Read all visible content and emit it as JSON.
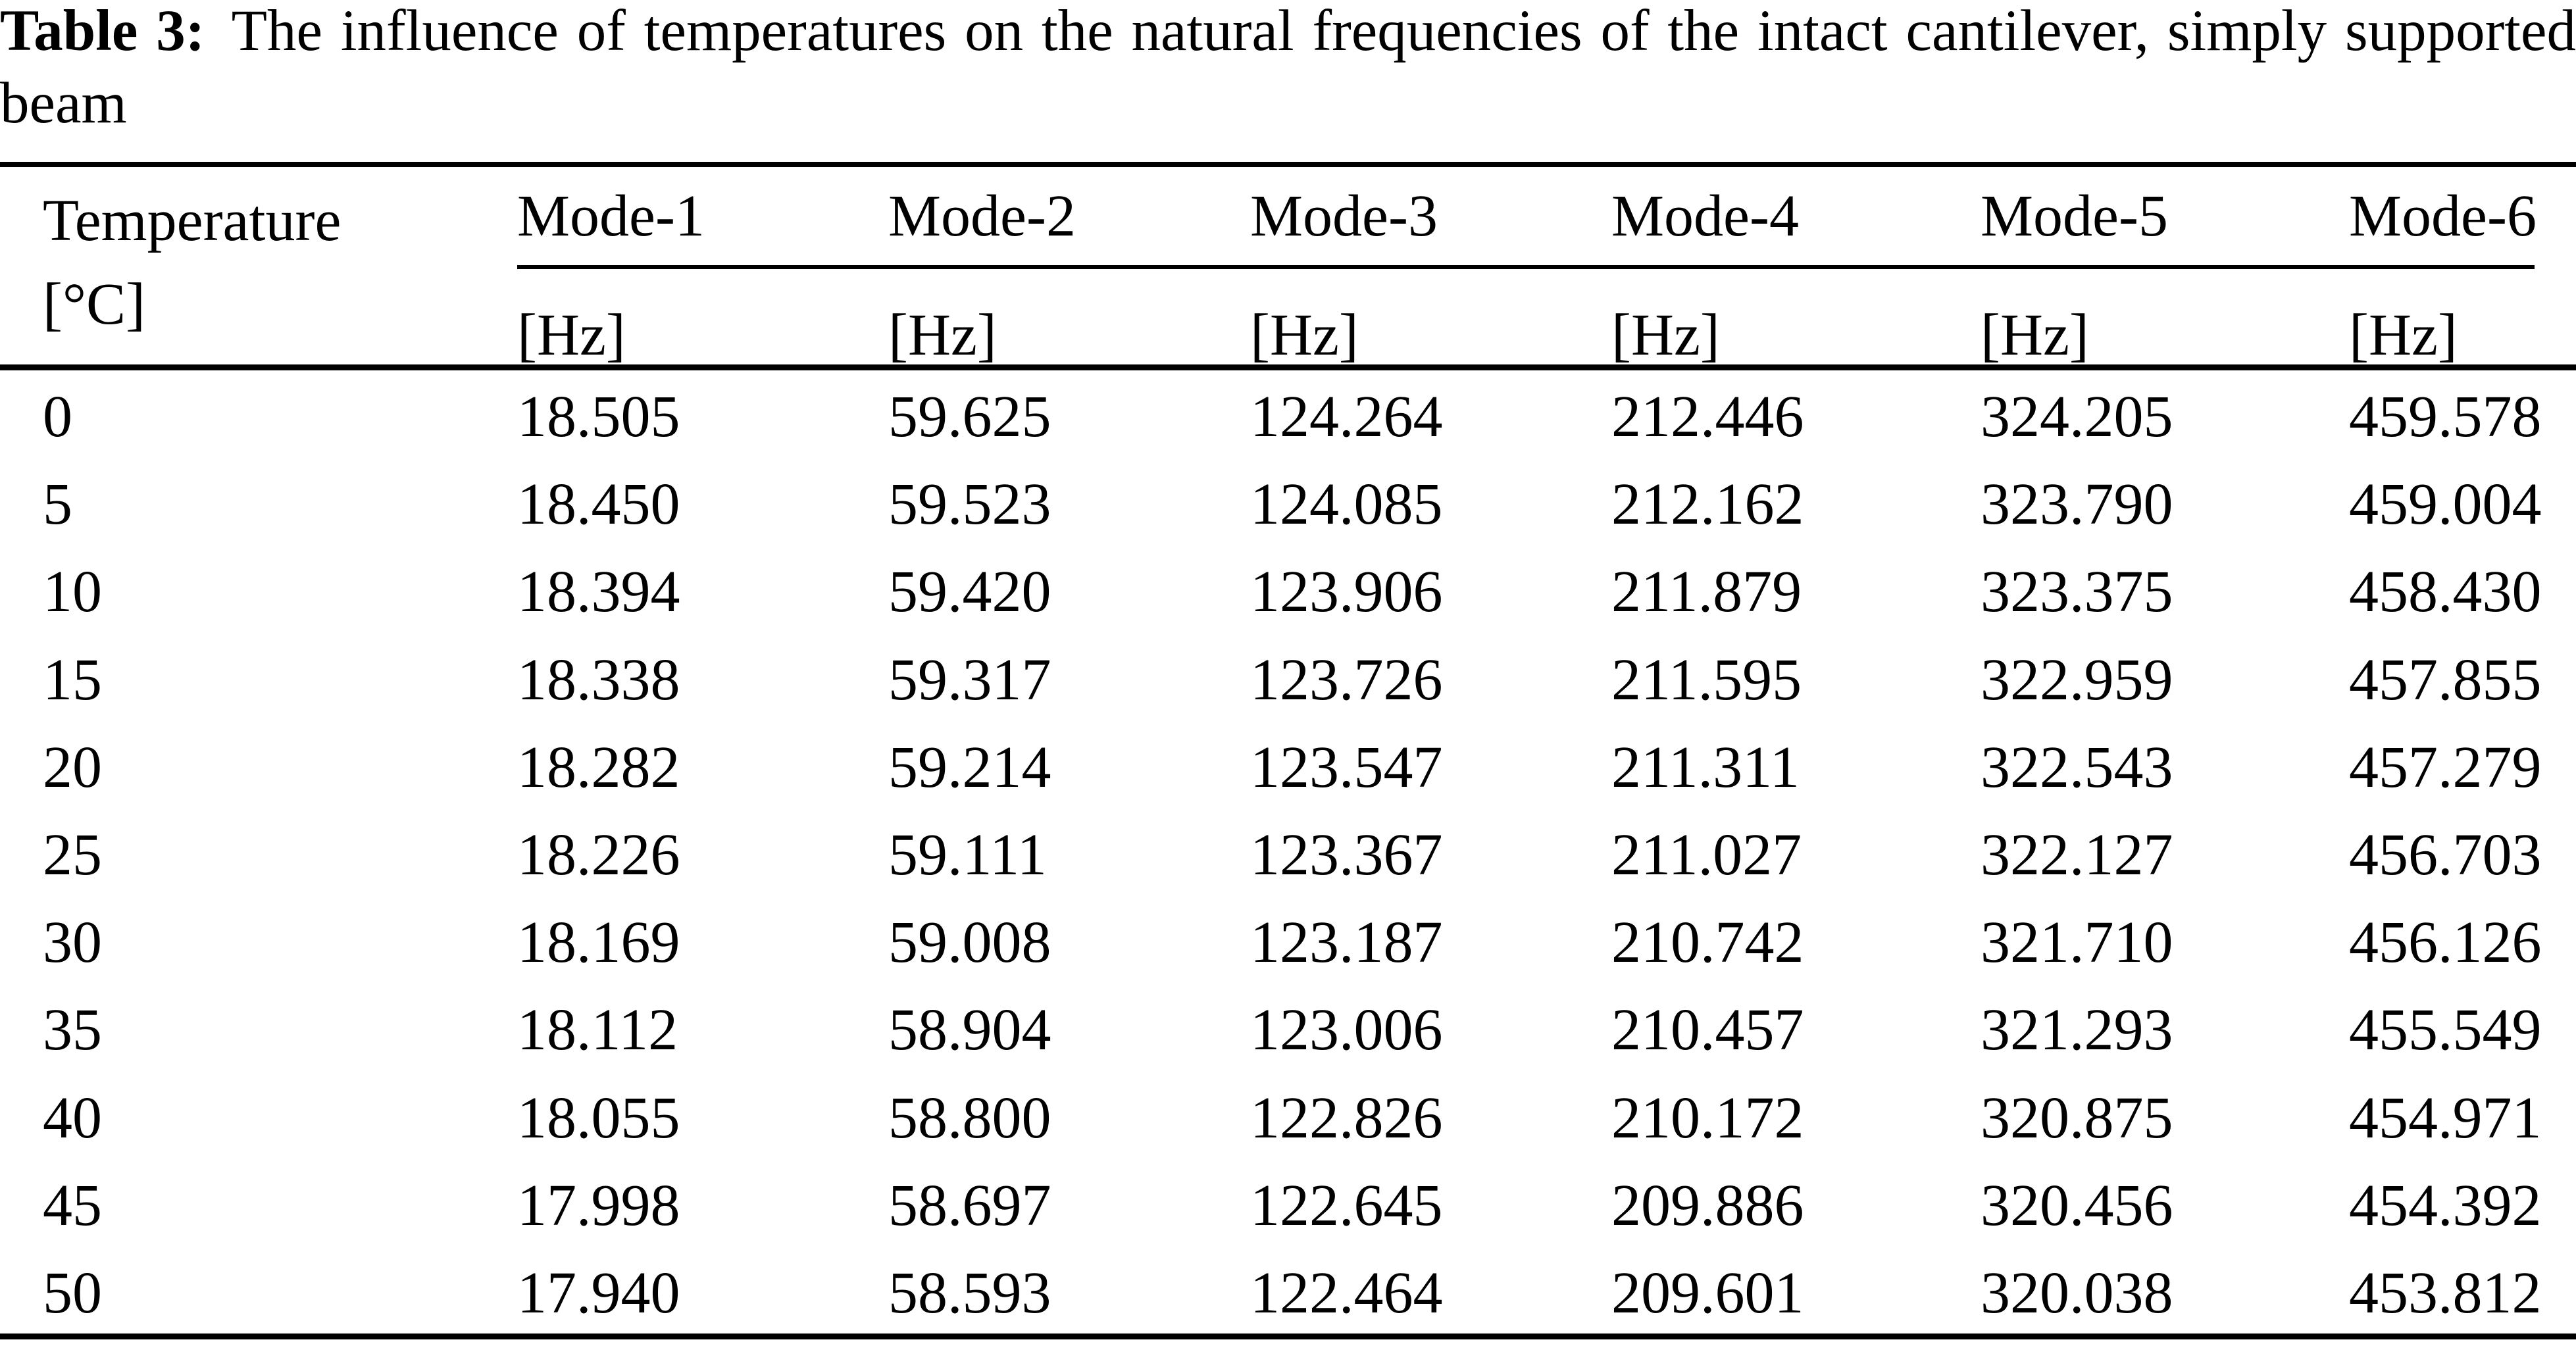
{
  "caption": {
    "label": "Table 3:",
    "text": "The influence of temperatures on the natural frequencies of the intact cantilever, simply supported beam"
  },
  "table": {
    "row_header": {
      "title": "Temperature",
      "unit": "[°C]"
    },
    "mode_headers": [
      "Mode-1",
      "Mode-2",
      "Mode-3",
      "Mode-4",
      "Mode-5",
      "Mode-6"
    ],
    "unit_headers": [
      "[Hz]",
      "[Hz]",
      "[Hz]",
      "[Hz]",
      "[Hz]",
      "[Hz]"
    ],
    "rows": [
      {
        "temperature": "0",
        "values": [
          "18.505",
          "59.625",
          "124.264",
          "212.446",
          "324.205",
          "459.578"
        ]
      },
      {
        "temperature": "5",
        "values": [
          "18.450",
          "59.523",
          "124.085",
          "212.162",
          "323.790",
          "459.004"
        ]
      },
      {
        "temperature": "10",
        "values": [
          "18.394",
          "59.420",
          "123.906",
          "211.879",
          "323.375",
          "458.430"
        ]
      },
      {
        "temperature": "15",
        "values": [
          "18.338",
          "59.317",
          "123.726",
          "211.595",
          "322.959",
          "457.855"
        ]
      },
      {
        "temperature": "20",
        "values": [
          "18.282",
          "59.214",
          "123.547",
          "211.311",
          "322.543",
          "457.279"
        ]
      },
      {
        "temperature": "25",
        "values": [
          "18.226",
          "59.111",
          "123.367",
          "211.027",
          "322.127",
          "456.703"
        ]
      },
      {
        "temperature": "30",
        "values": [
          "18.169",
          "59.008",
          "123.187",
          "210.742",
          "321.710",
          "456.126"
        ]
      },
      {
        "temperature": "35",
        "values": [
          "18.112",
          "58.904",
          "123.006",
          "210.457",
          "321.293",
          "455.549"
        ]
      },
      {
        "temperature": "40",
        "values": [
          "18.055",
          "58.800",
          "122.826",
          "210.172",
          "320.875",
          "454.971"
        ]
      },
      {
        "temperature": "45",
        "values": [
          "17.998",
          "58.697",
          "122.645",
          "209.886",
          "320.456",
          "454.392"
        ]
      },
      {
        "temperature": "50",
        "values": [
          "17.940",
          "58.593",
          "122.464",
          "209.601",
          "320.038",
          "453.812"
        ]
      }
    ]
  }
}
